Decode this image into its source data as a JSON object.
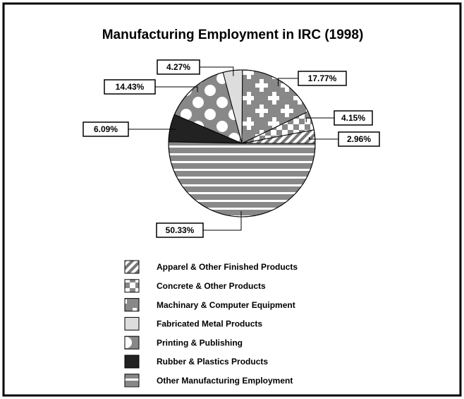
{
  "chart_data": {
    "type": "pie",
    "title": "Manufacturing Employment in IRC (1998)",
    "categories": [
      "Apparel & Other Finished Products",
      "Concrete & Other Products",
      "Machinary & Computer Equipment",
      "Fabricated Metal Products",
      "Printing & Publishing",
      "Rubber & Plastics Products",
      "Other Manufacturing Employment"
    ],
    "values": [
      2.96,
      4.15,
      17.77,
      4.27,
      14.43,
      6.09,
      50.33
    ],
    "value_labels": [
      "2.96%",
      "4.15%",
      "17.77%",
      "4.27%",
      "14.43%",
      "6.09%",
      "50.33%"
    ],
    "legend": "bottom"
  }
}
